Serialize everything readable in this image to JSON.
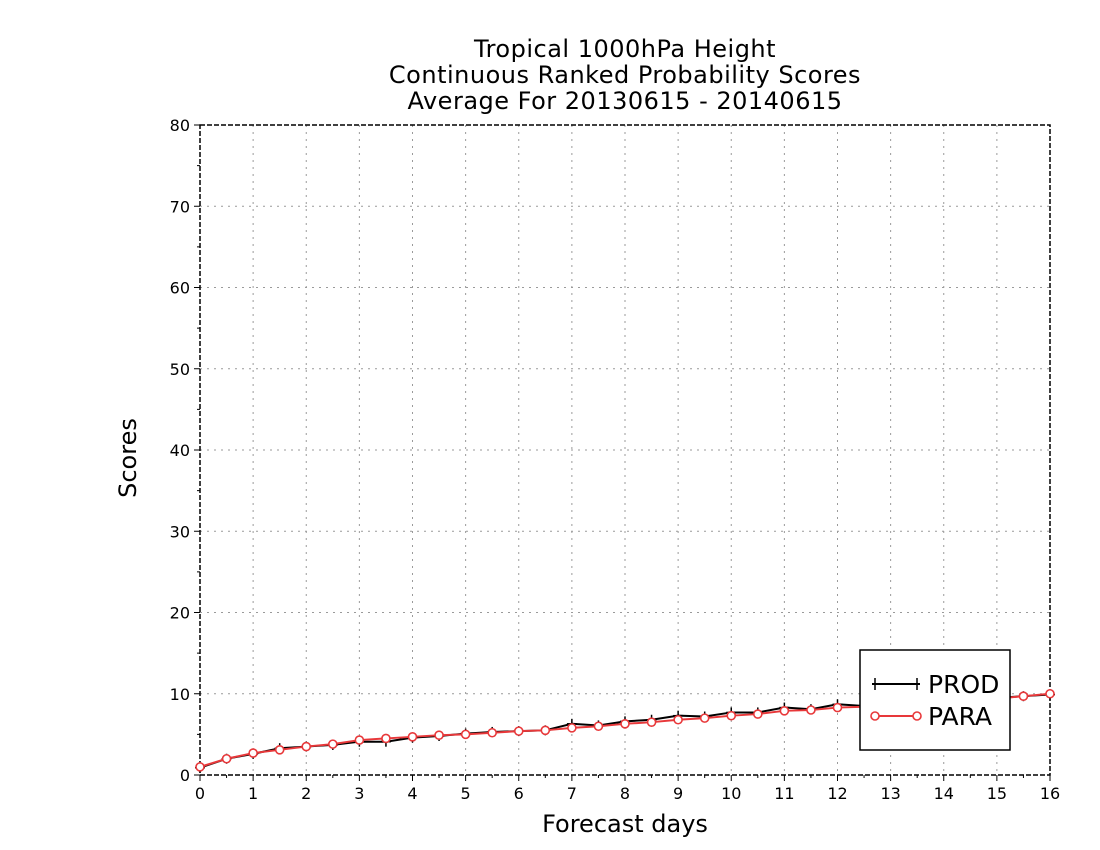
{
  "chart_data": {
    "type": "line",
    "title_lines": [
      "Tropical 1000hPa Height",
      "Continuous Ranked Probability Scores",
      "Average For 20130615 - 20140615"
    ],
    "xlabel": "Forecast days",
    "ylabel": "Scores",
    "xlim": [
      0,
      16
    ],
    "ylim": [
      0,
      80
    ],
    "xticks": [
      "0",
      "1",
      "2",
      "3",
      "4",
      "5",
      "6",
      "7",
      "8",
      "9",
      "10",
      "11",
      "12",
      "13",
      "14",
      "15",
      "16"
    ],
    "yticks": [
      "0",
      "10",
      "20",
      "30",
      "40",
      "50",
      "60",
      "70",
      "80"
    ],
    "grid": true,
    "legend_position": "bottom-right",
    "x": [
      0,
      0.5,
      1,
      1.5,
      2,
      2.5,
      3,
      3.5,
      4,
      4.5,
      5,
      5.5,
      6,
      6.5,
      7,
      7.5,
      8,
      8.5,
      9,
      9.5,
      10,
      10.5,
      11,
      11.5,
      12,
      12.5,
      13,
      13.5,
      14,
      14.5,
      15,
      15.5,
      16
    ],
    "series": [
      {
        "name": "PROD",
        "color": "#000000",
        "marker": "plus",
        "values": [
          0.9,
          2.0,
          2.6,
          3.3,
          3.5,
          3.7,
          4.1,
          4.1,
          4.6,
          4.8,
          5.1,
          5.3,
          5.4,
          5.5,
          6.3,
          6.1,
          6.6,
          6.8,
          7.3,
          7.2,
          7.7,
          7.7,
          8.3,
          8.1,
          8.7,
          8.5,
          8.7,
          8.7,
          8.9,
          9.1,
          9.5,
          9.7,
          9.9
        ]
      },
      {
        "name": "PARA",
        "color": "#e8383a",
        "marker": "circle",
        "values": [
          1.0,
          2.0,
          2.7,
          3.1,
          3.5,
          3.8,
          4.3,
          4.5,
          4.7,
          4.9,
          5.0,
          5.2,
          5.4,
          5.5,
          5.8,
          6.0,
          6.3,
          6.5,
          6.8,
          7.0,
          7.3,
          7.5,
          7.9,
          8.0,
          8.3,
          8.4,
          8.6,
          8.7,
          8.9,
          9.1,
          9.4,
          9.7,
          10.0
        ]
      }
    ]
  }
}
